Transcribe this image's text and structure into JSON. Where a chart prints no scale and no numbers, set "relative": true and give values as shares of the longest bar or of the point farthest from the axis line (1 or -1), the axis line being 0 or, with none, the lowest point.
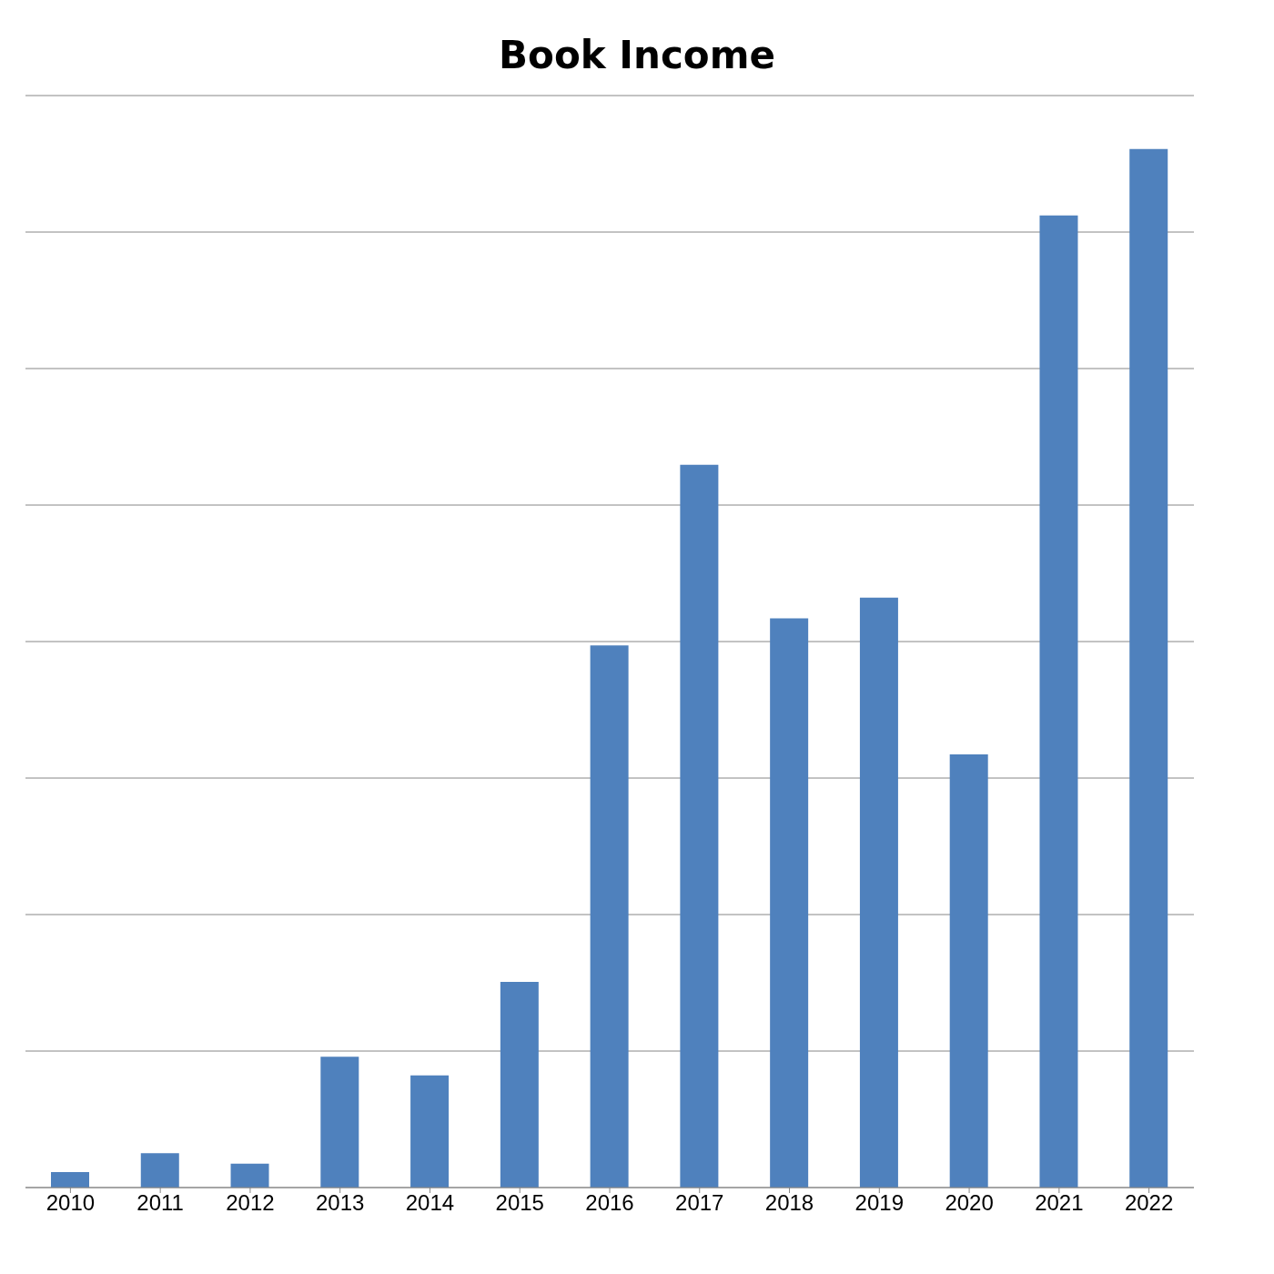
{
  "chart_data": {
    "type": "bar",
    "title": "Book Income",
    "relative": true,
    "grid": "y",
    "categories": [
      "2010",
      "2011",
      "2012",
      "2013",
      "2014",
      "2015",
      "2016",
      "2017",
      "2018",
      "2019",
      "2020",
      "2021",
      "2022"
    ],
    "values": [
      0.015,
      0.033,
      0.023,
      0.126,
      0.108,
      0.198,
      0.522,
      0.696,
      0.548,
      0.568,
      0.417,
      0.936,
      1
    ],
    "color": "#4f81bd"
  }
}
